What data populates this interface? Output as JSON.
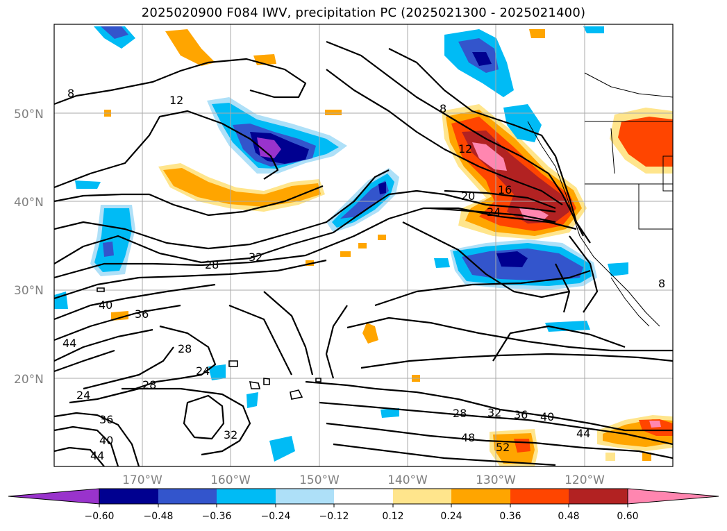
{
  "title": "2025020900 F084 IWV, precipitation PC (2025021300 - 2025021400)",
  "map": {
    "lat_labels": [
      "50°N",
      "40°N",
      "30°N",
      "20°N"
    ],
    "lon_labels": [
      "170°W",
      "160°W",
      "150°W",
      "140°W",
      "130°W",
      "120°W"
    ],
    "contour_labels": [
      "8",
      "12",
      "8",
      "12",
      "16",
      "20",
      "24",
      "28",
      "32",
      "40",
      "36",
      "44",
      "28",
      "24",
      "28",
      "24",
      "32",
      "36",
      "40",
      "44",
      "28",
      "32",
      "36",
      "40",
      "44",
      "48",
      "52",
      "8"
    ],
    "colors": {
      "neg_extreme": "#9933cc",
      "neg_060": "#000090",
      "neg_048": "#3355cc",
      "neg_036": "#00bbf5",
      "neg_024": "#aee0f8",
      "pos_012": "#ffe58c",
      "pos_024": "#ffa500",
      "pos_036": "#ff4500",
      "pos_048": "#b22222",
      "pos_060": "#ff86b0"
    }
  },
  "colorbar": {
    "ticks": [
      "−0.60",
      "−0.48",
      "−0.36",
      "−0.24",
      "−0.12",
      "0.12",
      "0.24",
      "0.36",
      "0.48",
      "0.60"
    ],
    "colors": [
      "#9933cc",
      "#000090",
      "#3355cc",
      "#00bbf5",
      "#aee0f8",
      "#ffffff",
      "#ffe58c",
      "#ffa500",
      "#ff4500",
      "#b22222",
      "#ff86b0"
    ]
  }
}
